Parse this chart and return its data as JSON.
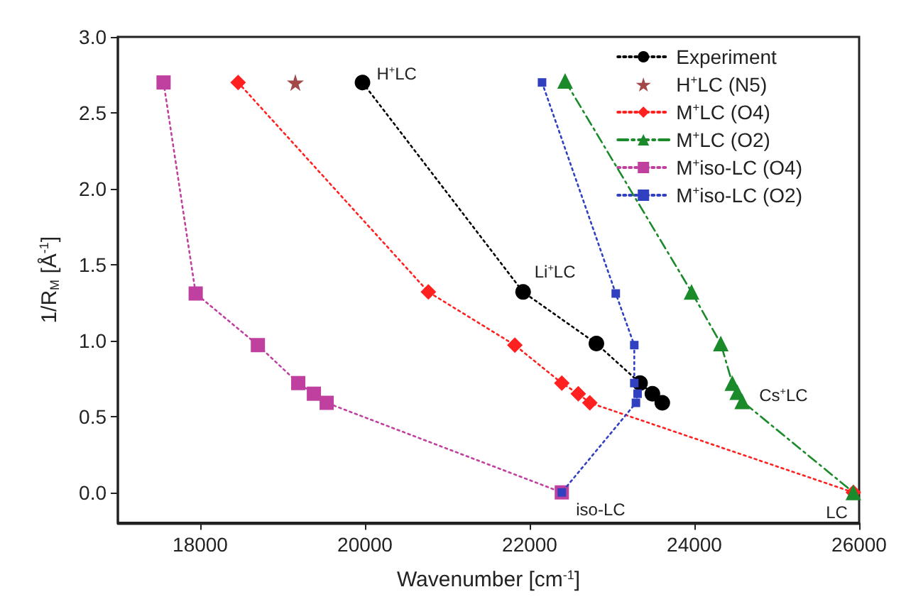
{
  "chart_data": {
    "type": "line",
    "xlabel": "Wavenumber [cm$^{-1}$]",
    "ylabel": "1/R$_{M}$ [Å$^{-1}$]",
    "xlim": [
      17000,
      26000
    ],
    "xticks": [
      18000,
      20000,
      22000,
      24000,
      26000
    ],
    "ylim": [
      -0.2,
      3.0
    ],
    "yticks": [
      {
        "value": 0,
        "label": "0.0"
      },
      {
        "value": 0.5,
        "label": "0.5"
      },
      {
        "value": 1,
        "label": "1.0"
      },
      {
        "value": 1.5,
        "label": "1.5"
      },
      {
        "value": 2,
        "label": "2.0"
      },
      {
        "value": 2.5,
        "label": "2.5"
      },
      {
        "value": 3,
        "label": "3.0"
      }
    ],
    "grid": false,
    "legend": "top right",
    "series": [
      {
        "name": "Experiment",
        "color": "#000000",
        "marker": "circle",
        "line_style": "dotted",
        "x": [
          19970,
          21920,
          22810,
          23340,
          23490,
          23610
        ],
        "values": [
          2.7,
          1.32,
          0.98,
          0.72,
          0.65,
          0.59
        ]
      },
      {
        "name": "H$^{+}$LC (N5)",
        "type": "scatter",
        "color": "#8b1a1a",
        "marker": "star",
        "x": [
          19155
        ],
        "values": [
          2.7
        ]
      },
      {
        "name": "M$^{+}$LC (O4)",
        "color": "#ff2020",
        "marker": "diamond",
        "line_style": "dotted",
        "x": [
          18460,
          20770,
          21820,
          22390,
          22590,
          22730,
          25930
        ],
        "values": [
          2.7,
          1.32,
          0.97,
          0.72,
          0.65,
          0.59,
          0
        ]
      },
      {
        "name": "M$^{+}$LC (O2)",
        "color": "#1a8a2a",
        "marker": "triangle",
        "line_style": "dashed",
        "x": [
          22430,
          23965,
          24320,
          24460,
          24520,
          24580,
          25930
        ],
        "values": [
          2.71,
          1.32,
          0.98,
          0.72,
          0.66,
          0.6,
          0
        ]
      },
      {
        "name": "M$^{+}$iso-LC (O4)",
        "color": "#c040a0",
        "marker": "square",
        "line_style": "dotted",
        "x": [
          17555,
          17945,
          18700,
          19190,
          19380,
          19535,
          22390
        ],
        "values": [
          2.7,
          1.31,
          0.97,
          0.72,
          0.65,
          0.59,
          0
        ]
      },
      {
        "name": "M$^{+}$iso-LC (O2)",
        "color": "#3040c0",
        "marker": "square",
        "line_style": "dotted",
        "x": [
          22150,
          23045,
          23270,
          23270,
          23310,
          23290,
          22390
        ],
        "values": [
          2.7,
          1.31,
          0.97,
          0.72,
          0.65,
          0.59,
          0
        ]
      }
    ],
    "annotations": [
      {
        "text": "H$^{+}$LC",
        "x": 19970,
        "y": 2.7
      },
      {
        "text": "Li$^{+}$LC",
        "x": 21920,
        "y": 1.32
      },
      {
        "text": "Cs$^{+}$LC",
        "x": 24580,
        "y": 0.6
      },
      {
        "text": "iso-LC",
        "x": 22390,
        "y": 0
      },
      {
        "text": "LC",
        "x": 25930,
        "y": 0
      }
    ]
  }
}
